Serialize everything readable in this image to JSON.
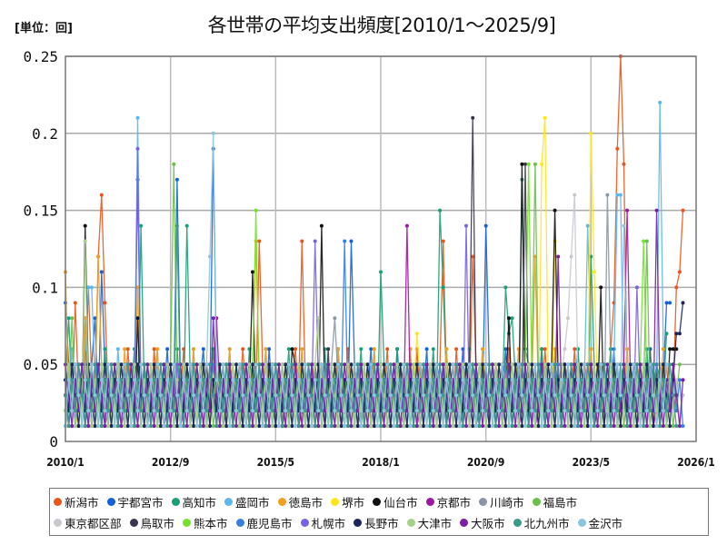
{
  "header": {
    "unit_label": "[単位：回]",
    "title": "各世帯の平均支出頻度[2010/1～2025/9]"
  },
  "chart_data": {
    "type": "line",
    "title": "各世帯の平均支出頻度[2010/1～2025/9]",
    "unit": "回",
    "xlabel": "",
    "ylabel": "",
    "x_start": "2010/1",
    "x_end": "2025/9",
    "n_points": 189,
    "ylim": [
      0,
      0.25
    ],
    "yticks": [
      "0",
      "0.05",
      "0.1",
      "0.15",
      "0.2",
      "0.25"
    ],
    "xticks": [
      "2010/1",
      "2012/9",
      "2015/5",
      "2018/1",
      "2020/9",
      "2023/5",
      "2026/1"
    ],
    "grid": true,
    "legend_position": "bottom",
    "value_scale": 0.01,
    "series": [
      {
        "name": "新潟市",
        "color": "#E8561C",
        "values": "3,4,2,9,3,2,5,10,4,3,12,16,9,3,2,4,5,3,2,6,3,4,2,3,5,3,2,6,3,4,2,5,3,2,4,3,6,2,3,5,4,2,3,5,2,6,3,4,2,3,5,4,2,3,6,3,2,4,3,13,5,3,2,4,3,2,5,3,2,4,6,3,13,4,3,2,5,3,2,4,3,5,2,3,4,2,6,3,5,2,4,3,2,5,3,4,2,3,6,2,4,3,5,2,3,4,2,6,3,5,2,4,3,2,5,13,4,3,2,6,3,2,4,3,12,5,3,2,4,3,2,5,4,3,2,6,3,4,2,5,3,2,4,3,5,2,6,3,4,2,3,5,2,4,3,6,2,3,5,4,2,3,5,2,4,3,6,9,19,25,18,4,3,2,5,3,4,2,6,3,2,4,3,5,2,3,10,11,15"
      },
      {
        "name": "宇都宮市",
        "color": "#1560D6",
        "values": "9,5,2,3,5,2,4,3,5,8,2,11,5,3,2,4,3,2,5,3,2,4,17,3,2,4,3,5,2,4,3,6,2,3,17,4,2,3,5,2,3,4,6,2,3,19,4,3,2,5,3,2,4,3,5,2,3,4,2,5,3,2,6,3,4,2,3,5,2,4,3,5,2,3,4,2,5,3,2,4,3,5,2,6,3,4,2,13,5,3,2,4,3,6,2,3,5,2,4,3,2,6,3,4,2,3,5,2,4,3,6,2,3,5,4,2,3,5,2,4,3,6,2,3,5,4,2,3,14,5,3,2,4,3,6,2,3,5,4,2,3,5,2,4,3,6,2,3,5,4,2,3,5,2,4,3,6,2,3,5,4,2,3,5,2,4,3,6,2,3,5,4,2,3,5,2,4,3,6,2,3,5,4,9,9"
      },
      {
        "name": "高知市",
        "color": "#1A9E77",
        "values": "4,8,3,2,5,3,8,2,4,3,5,2,6,3,4,2,5,3,2,4,3,6,2,14,3,5,2,4,3,2,5,3,4,2,6,3,2,14,4,3,5,2,3,4,2,6,3,5,2,4,3,2,5,3,4,2,6,3,2,5,3,4,2,3,5,2,4,3,6,2,3,5,4,2,3,5,2,4,3,6,2,3,5,4,2,3,5,2,4,3,6,2,3,5,4,2,11,5,2,4,3,6,2,3,5,4,2,3,5,2,4,3,6,2,15,10,4,2,3,5,2,4,3,6,2,3,5,4,2,3,5,2,4,3,10,7,8,4,2,17,6,5,3,4,2,6,3,4,2,5,3,2,4,3,5,2,6,3,4,2,12,5,3,2,4,3,6,2,3,5,4,2,3,5,2,4,3,6,2,3,5,4,3,7"
      },
      {
        "name": "盛岡市",
        "color": "#5BB8EE",
        "values": "5,3,6,2,4,3,6,10,10,4,3,2,5,3,4,2,6,3,5,2,4,3,21,3,5,2,4,3,6,2,3,5,4,2,3,5,2,4,3,6,2,3,5,4,2,3,5,2,4,3,6,2,3,5,4,2,3,5,2,4,3,6,2,3,5,4,2,3,5,2,4,3,6,2,3,5,4,2,3,5,2,4,3,6,2,3,5,4,2,3,5,2,4,3,6,2,3,5,4,2,3,5,2,4,3,6,2,3,5,4,2,3,5,2,4,3,6,2,3,5,4,2,3,5,2,4,3,6,2,3,5,4,2,3,5,2,4,3,6,2,3,5,4,2,3,5,2,4,3,6,2,3,5,4,2,3,5,2,4,14,6,2,3,5,4,2,3,5,16,16,3,6,2,3,5,4,2,3,5,2,4,22,6"
      },
      {
        "name": "徳島市",
        "color": "#F0A020",
        "values": "11,3,2,5,3,2,8,4,2,3,12,5,3,2,4,3,5,2,6,3,4,2,10,3,5,2,4,3,6,2,3,5,4,2,3,5,2,4,3,6,2,3,5,4,2,3,5,2,4,3,6,2,3,5,4,2,3,5,13,4,3,6,2,3,5,4,2,3,5,2,4,3,6,2,3,5,4,2,3,5,2,4,3,6,2,3,5,4,2,3,5,2,4,3,6,2,3,5,4,2,3,5,2,4,3,6,2,3,5,4,2,3,5,2,4,3,6,2,3,5,4,2,3,5,2,4,3,6,2,3,5,4,2,3,5,2,4,3,6,2,3,5,4,12,3,5,2,4,3,6,2,3,5,4,2,3,5,2,4,3,6,2,3,5,4,2,3,5,2,4,3,6,2,3,5,4,2,3,5,2,4,3,6"
      },
      {
        "name": "堺市",
        "color": "#FFE61A",
        "values": "2,4,3,1,2,5,1,3,2,4,1,3,2,5,1,3,2,4,1,3,5,2,4,1,3,2,5,1,3,2,4,1,3,5,2,4,1,3,2,5,1,3,2,4,1,3,5,2,4,1,3,2,5,1,3,2,4,1,3,5,2,4,1,3,2,5,1,3,2,4,1,3,5,2,4,1,3,2,5,1,3,2,4,1,3,5,2,4,1,3,2,5,1,3,2,4,1,3,5,2,4,1,3,2,5,1,3,7,4,1,3,5,2,4,1,3,2,5,1,3,2,4,1,3,5,2,4,1,3,2,5,1,3,2,4,1,3,5,2,4,1,3,2,5,1,18,21,4,1,13,5,2,4,1,3,2,5,1,3,2,20,11,3,5,2,4,1,3,2,5,1,3,2,4,1,3,5,2,4,1,3,2,5,1,3,2,4,1,3"
      },
      {
        "name": "仙台市",
        "color": "#111111",
        "values": "3,2,4,1,3,2,14,4,1,3,2,5,1,3,2,4,1,3,5,2,4,1,8,2,5,1,3,2,4,1,3,5,2,4,1,3,2,5,1,3,2,4,1,3,5,2,4,1,3,2,5,1,3,2,4,1,3,11,2,4,1,3,2,5,1,3,2,4,1,6,5,2,4,1,3,2,5,1,14,2,4,1,3,5,2,4,1,3,2,5,1,3,2,4,1,3,5,2,4,1,3,2,5,1,3,2,4,1,3,5,2,4,1,3,2,5,1,3,2,4,1,3,5,2,4,1,3,2,5,1,3,2,4,1,3,8,2,4,1,18,2,5,1,3,2,4,1,3,5,15,4,1,3,2,5,1,3,2,4,1,3,5,2,10,1,3,2,5,1,3,2,4,1,3,5,2,4,1,3,2,5,1,3,2,6,6,6"
      },
      {
        "name": "京都市",
        "color": "#A0169E",
        "values": "2,3,5,1,4,2,3,1,5,2,4,3,1,2,5,3,4,1,2,3,5,1,4,2,3,1,5,2,4,3,1,2,5,3,4,1,2,3,5,1,4,2,3,1,5,2,8,3,1,2,5,3,4,1,2,3,5,1,4,2,3,1,5,2,4,3,1,2,5,3,4,1,2,3,5,1,4,2,3,1,5,2,4,3,1,2,5,3,4,1,2,3,5,1,4,2,3,1,5,2,4,3,1,2,14,3,4,1,2,3,5,1,4,2,3,1,5,2,4,3,1,2,5,3,4,1,2,3,5,1,4,2,3,1,5,2,4,3,1,2,5,3,4,1,2,3,5,1,4,2,3,1,5,2,4,3,1,2,5,3,4,1,2,3,5,1,4,2,3,1,5,15,4,3,1,2,5,3,4,1,2,3,5,1,4,2,3"
      },
      {
        "name": "川崎市",
        "color": "#8A96A8",
        "values": "3,5,2,4,1,3,5,2,4,1,3,5,2,4,1,3,5,2,4,1,3,5,2,4,1,3,5,2,4,1,3,5,2,4,1,3,5,2,4,1,3,5,2,4,1,3,5,2,4,1,3,5,2,4,1,3,5,2,4,1,3,5,2,4,1,3,5,2,4,1,3,5,2,4,1,3,5,2,4,1,3,5,8,4,1,3,5,2,4,1,3,5,2,4,1,3,5,2,4,1,3,5,2,4,1,3,5,2,4,1,3,5,2,4,1,3,5,2,4,1,3,5,2,4,1,3,5,2,4,1,3,5,2,4,1,3,5,2,4,1,3,5,2,4,1,3,5,2,4,1,3,5,2,4,1,3,5,2,4,1,3,5,2,4,1,16,5,2,4,1,3,5,2,4,1,3,5,2,4"
      },
      {
        "name": "福島市",
        "color": "#6CC04A",
        "values": "1,3,8,2,4,1,3,5,2,4,1,3,5,2,4,1,3,5,2,4,1,3,5,2,4,1,3,5,2,4,1,3,5,18,4,1,3,5,2,4,1,3,5,2,4,1,3,5,2,4,1,3,5,2,4,1,3,5,2,4,1,3,5,2,4,1,3,5,2,4,1,3,5,2,4,1,3,5,2,4,1,3,5,2,4,1,3,5,2,4,1,3,5,2,4,1,3,5,2,4,1,3,5,2,4,1,3,5,2,4,1,3,5,2,4,1,3,5,2,4,1,3,5,2,4,1,3,5,2,4,1,3,5,2,4,1,3,5,2,4,1,3,5,18,4,1,3,5,2,4,1,3,5,2,4,1,3,5,2,4,1,3,5,2,4,1,3,5,2,4,1,3,5,2,4,1,3,13,2,4,1,3,5,2,4,1,3,5"
      },
      {
        "name": "東京都区部",
        "color": "#C8C8D0",
        "values": "2,4,1,3,5,2,4,1,3,5,2,4,1,3,5,2,4,1,3,5,2,4,1,3,5,2,4,1,3,5,2,4,1,3,5,2,4,1,3,5,2,4,1,3,5,2,4,1,3,5,2,4,1,3,5,2,4,1,3,5,2,4,1,3,5,2,4,1,3,5,2,4,1,3,5,2,4,1,3,5,2,4,1,3,5,2,4,1,3,5,2,4,1,3,5,2,4,1,3,5,2,4,1,3,5,2,4,1,3,5,2,4,1,3,5,2,4,1,3,5,2,4,1,3,5,2,4,1,3,5,2,4,1,3,5,2,4,1,3,5,2,4,1,3,5,2,4,1,3,5,2,4,6,8,12,16,4,1,3,5,2,4,1,3,5,2,4,1,3,5,2,4,1,3,5,2,4,1,3,5,2,4,1,3,5,2,4,1,3"
      },
      {
        "name": "鳥取市",
        "color": "#3A3450",
        "values": "4,1,3,5,2,4,1,3,5,2,4,1,3,5,2,4,1,3,5,2,4,1,3,5,2,4,1,3,5,2,4,1,3,5,2,4,1,3,5,2,4,1,3,5,2,4,1,3,5,2,4,1,3,5,2,4,1,3,5,2,4,1,3,5,2,4,1,3,5,2,4,1,3,5,2,4,1,3,5,2,6,1,3,5,2,4,1,3,5,2,4,1,3,5,2,4,1,3,5,2,4,1,3,5,2,4,1,3,5,2,4,1,3,5,2,4,1,3,5,2,4,1,3,5,21,4,1,3,5,2,4,1,3,5,2,4,1,3,5,2,18,1,3,5,2,4,1,3,5,2,4,1,3,5,2,4,1,3,5,2,4,1,3,5,2,4,1,3,5,2,4,1,3,5,2,4,1,3,5,2,4,1,3"
      },
      {
        "name": "熊本市",
        "color": "#76E030",
        "values": "1,2,4,1,3,5,2,4,1,3,5,2,4,1,3,5,2,4,1,3,5,2,4,1,3,5,2,4,1,3,5,2,4,1,3,5,2,4,1,3,5,2,4,1,3,5,2,4,1,3,5,2,4,1,3,5,2,4,15,3,5,2,4,1,3,5,2,4,1,3,5,2,4,1,3,5,2,4,1,3,5,2,4,1,3,5,2,4,1,3,5,2,4,1,3,5,2,4,1,3,5,2,4,1,3,5,2,4,1,3,5,2,4,1,3,5,2,4,1,3,5,2,4,1,3,5,2,4,1,3,5,2,4,1,3,5,2,4,1,3,5,18,4,1,3,5,2,4,1,3,5,2,4,1,3,5,2,4,1,3,5,2,4,1,3,5,2,4,1,3,5,2,4,1,3,5,13,4,1,3,5,2,4,1,3"
      },
      {
        "name": "鹿児島市",
        "color": "#3A7EDC",
        "values": "5,2,4,1,3,5,2,4,1,3,5,2,4,1,3,5,2,4,1,3,5,2,4,1,3,5,2,4,1,3,5,2,4,1,3,5,2,4,1,3,5,2,4,1,3,5,2,4,1,3,5,2,4,1,3,5,2,4,1,3,5,2,4,1,3,5,2,4,1,3,5,2,4,1,3,5,2,4,1,3,5,2,4,1,3,13,2,4,1,3,5,2,4,1,3,5,2,4,1,3,5,2,4,1,3,5,2,4,1,3,5,2,4,1,3,5,2,4,1,3,5,2,4,1,3,5,2,4,1,3,5,2,4,1,3,5,2,4,1,3,5,2,4,1,3,5,2,4,1,3,5,2,4,1,3,5,2,4,1,3,5,2,4,1,3,5,2,4,1,3,5,2,4,1,3,5,2,4,1,3,5,2,4,1,3,5,2,4,1"
      },
      {
        "name": "札幌市",
        "color": "#7A60E0",
        "values": "3,1,4,2,5,3,1,4,2,5,3,1,4,2,5,3,1,4,2,5,3,1,19,2,5,3,1,4,2,5,3,1,4,2,5,3,1,4,2,5,3,1,4,2,5,3,1,4,2,5,3,1,4,2,5,3,1,4,2,5,3,1,4,2,5,3,1,4,2,5,3,1,4,2,5,3,13,4,2,5,3,1,4,2,5,3,1,4,2,5,3,1,4,2,5,3,1,4,2,5,3,1,4,2,5,3,1,4,2,5,3,1,4,2,5,3,1,4,2,5,3,1,14,2,5,3,1,4,2,5,3,1,4,2,5,3,1,4,2,5,3,1,4,2,5,3,1,4,2,5,3,1,4,2,5,3,1,4,2,5,3,1,4,2,5,3,1,4,2,5,3,1,4,2,10,3,1,4,2,5,3,1,4,2"
      },
      {
        "name": "長野市",
        "color": "#1C2458",
        "values": "4,2,5,3,1,4,2,5,3,1,4,2,5,3,1,4,2,5,3,1,4,2,5,3,1,4,2,5,3,1,4,2,5,3,1,4,2,5,3,1,4,2,5,3,1,4,2,5,3,1,4,2,5,3,1,4,2,5,3,1,4,2,5,3,1,4,2,5,3,1,4,2,5,3,1,4,2,5,3,1,4,2,5,3,1,4,2,5,3,1,4,2,5,3,1,4,2,5,3,1,4,2,5,3,1,4,2,5,3,1,4,2,5,3,1,4,2,5,3,1,4,2,5,3,1,4,2,5,3,1,4,2,5,3,1,4,2,5,3,1,4,2,5,3,1,4,2,5,3,1,4,2,5,3,1,4,2,5,3,1,4,2,5,3,1,4,2,5,3,1,4,2,5,3,1,4,2,5,3,1,4,2,5,3,1,4,7,7,9"
      },
      {
        "name": "大津市",
        "color": "#A8D08C",
        "values": "2,5,3,1,4,2,13,3,1,4,2,5,3,1,4,2,5,3,1,4,2,5,3,1,4,2,5,3,1,4,2,5,3,1,4,2,5,3,1,4,2,5,3,1,4,2,5,3,1,4,2,5,3,1,4,2,5,3,1,4,2,5,3,1,4,2,5,3,1,4,2,5,3,1,4,2,5,8,1,4,2,5,3,1,4,2,5,3,1,4,2,5,3,1,4,2,5,3,1,4,2,5,3,1,4,2,5,3,1,4,2,5,3,1,4,2,5,3,1,4,2,5,3,1,4,2,5,3,1,4,2,5,3,1,4,2,5,3,1,4,2,5,3,1,4,2,5,3,1,4,2,5,3,1,4,2,5,3,1,4,2,5,3,1,4,2,5,3,1,4,2,5,3,1,4,2,5,3,1,4,2,5,3,1,4"
      },
      {
        "name": "大阪市",
        "color": "#7A1EA8",
        "values": "5,3,1,4,2,5,3,1,4,2,5,3,1,4,2,5,3,1,4,2,5,3,1,4,2,5,3,1,4,2,5,3,1,4,2,5,3,1,4,2,5,3,1,4,2,8,3,1,4,2,5,3,1,4,2,5,3,1,4,2,5,3,1,4,2,5,3,1,4,2,5,3,1,4,2,5,3,1,4,2,5,3,1,4,2,5,3,1,4,2,5,3,1,4,2,5,3,1,4,2,5,3,1,4,2,5,3,1,4,2,5,3,1,4,2,5,3,1,4,2,5,3,1,4,2,5,3,1,4,2,5,3,1,4,2,5,3,1,4,2,5,3,1,4,2,5,3,1,4,2,12,3,1,4,2,5,3,1,4,2,5,3,1,4,2,5,3,1,4,2,5,3,1,4,2,5,3,1,4,2,15,3,1,4,2,5,3,1,4"
      },
      {
        "name": "北九州市",
        "color": "#3A9A88",
        "values": "3,1,4,2,5,3,1,4,2,5,3,1,4,2,5,3,1,4,2,5,3,1,4,2,5,3,1,4,2,5,3,1,4,2,14,3,1,4,2,5,3,1,4,2,5,3,1,4,2,5,3,1,4,2,5,3,1,4,2,5,3,1,4,2,5,3,1,4,2,5,3,1,4,2,5,3,1,4,2,5,3,1,4,2,5,3,1,4,2,5,3,1,4,2,5,3,1,4,2,5,3,1,4,2,5,3,1,4,2,5,3,1,4,2,5,3,1,4,2,5,3,1,4,2,5,3,1,4,2,5,3,1,4,2,5,3,1,4,2,5,3,1,4,2,5,3,1,4,2,5,3,1,4,2,5,3,1,4,2,5,3,1,4,2,5,3,1,4,2,5,3,1,4,2,5,3,1,4,2,5,3,1,4,2,5,3,1"
      },
      {
        "name": "金沢市",
        "color": "#8EC4DE",
        "values": "1,4,2,5,3,1,4,2,5,3,1,4,2,5,3,1,4,2,5,3,1,4,2,5,3,1,4,2,5,3,1,4,2,5,3,1,4,2,5,3,1,4,2,5,12,20,4,2,5,3,1,4,2,5,3,1,4,2,5,3,1,4,2,5,3,1,4,2,5,3,1,4,2,5,3,1,4,2,5,3,1,4,2,5,3,1,4,2,5,3,1,4,2,5,3,1,4,2,5,3,1,4,2,5,3,1,4,2,5,3,1,4,2,5,3,1,4,2,5,3,1,4,2,5,3,1,4,2,5,3,1,4,2,5,3,1,4,2,5,3,1,4,2,5,3,1,4,2,5,3,1,4,2,5,3,1,4,2,5,3,1,4,2,5,3,1,4,2,5,3,14,4,2,5,3,1,4,2,5,3,1,4,2,5"
      }
    ]
  },
  "legend": {
    "rows": [
      [
        "新潟市",
        "宇都宮市",
        "高知市",
        "盛岡市",
        "徳島市",
        "堺市",
        "仙台市",
        "京都市",
        "川崎市",
        "福島市"
      ],
      [
        "東京都区部",
        "鳥取市",
        "熊本市",
        "鹿児島市",
        "札幌市",
        "長野市",
        "大津市",
        "大阪市",
        "北九州市",
        "金沢市"
      ]
    ]
  }
}
